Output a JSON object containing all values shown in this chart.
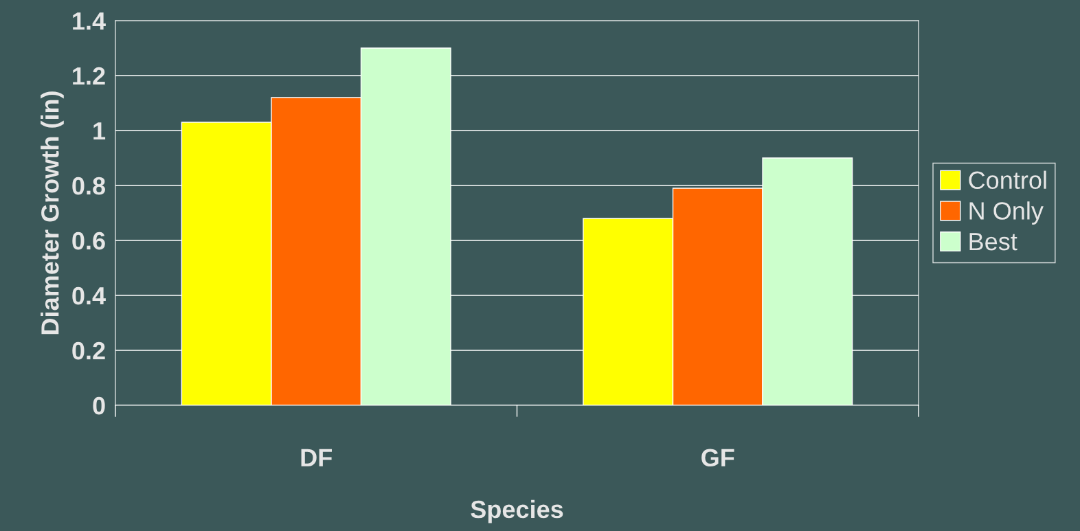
{
  "chart_data": {
    "type": "bar",
    "xlabel": "Species",
    "ylabel": "Diameter Growth (in)",
    "categories": [
      "DF",
      "GF"
    ],
    "series": [
      {
        "name": "Control",
        "color": "#ffff00",
        "values": [
          1.03,
          0.68
        ]
      },
      {
        "name": "N Only",
        "color": "#ff6600",
        "values": [
          1.12,
          0.79
        ]
      },
      {
        "name": "Best",
        "color": "#ccffcc",
        "values": [
          1.3,
          0.9
        ]
      }
    ],
    "ylim": [
      0,
      1.4
    ],
    "yticks": [
      0,
      0.2,
      0.4,
      0.6,
      0.8,
      1,
      1.2,
      1.4
    ],
    "grid": "y",
    "legend": "right"
  }
}
